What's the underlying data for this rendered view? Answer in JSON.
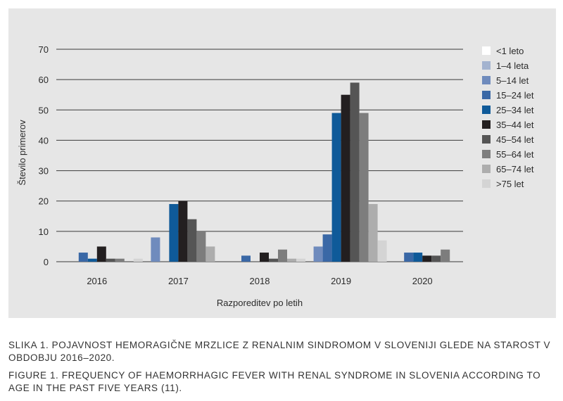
{
  "chart_data": {
    "type": "bar",
    "title": "",
    "xlabel": "Razporeditev po letih",
    "ylabel": "Število primerov",
    "ylim": [
      0,
      70
    ],
    "yticks": [
      0,
      10,
      20,
      30,
      40,
      50,
      60,
      70
    ],
    "grid": true,
    "legend_position": "right",
    "categories": [
      "2016",
      "2017",
      "2018",
      "2019",
      "2020"
    ],
    "series": [
      {
        "name": "<1 leto",
        "color": "#ffffff",
        "values": [
          0,
          0,
          0,
          0,
          0
        ]
      },
      {
        "name": "1–4 leta",
        "color": "#a3b3cf",
        "values": [
          0,
          0,
          0,
          0,
          0
        ]
      },
      {
        "name": "5–14 let",
        "color": "#6f8bbd",
        "values": [
          0,
          8,
          0,
          5,
          0
        ]
      },
      {
        "name": "15–24 let",
        "color": "#3a68a6",
        "values": [
          3,
          0,
          2,
          9,
          3
        ]
      },
      {
        "name": "25–34 let",
        "color": "#0f5a99",
        "values": [
          1,
          19,
          0,
          49,
          3
        ]
      },
      {
        "name": "35–44 let",
        "color": "#231f20",
        "values": [
          5,
          20,
          3,
          55,
          2
        ]
      },
      {
        "name": "45–54 let",
        "color": "#555555",
        "values": [
          1,
          14,
          1,
          59,
          2
        ]
      },
      {
        "name": "55–64 let",
        "color": "#7d7d7d",
        "values": [
          1,
          10,
          4,
          49,
          4
        ]
      },
      {
        "name": "65–74 let",
        "color": "#adadad",
        "values": [
          0,
          5,
          1,
          19,
          0
        ]
      },
      {
        "name": ">75 let",
        "color": "#d4d4d4",
        "values": [
          1,
          0,
          1,
          7,
          0
        ]
      }
    ]
  },
  "captions": {
    "slovenian": "SLIKA 1. POJAVNOST HEMORAGIČNE MRZLICE Z RENALNIM SINDROMOM V SLOVENIJI GLEDE NA STAROST V OBDOBJU 2016–2020.",
    "english": "FIGURE 1. FREQUENCY OF HAEMORRHAGIC FEVER WITH RENAL SYNDROME IN SLOVENIA ACCORDING TO AGE IN THE PAST FIVE YEARS (11)."
  }
}
